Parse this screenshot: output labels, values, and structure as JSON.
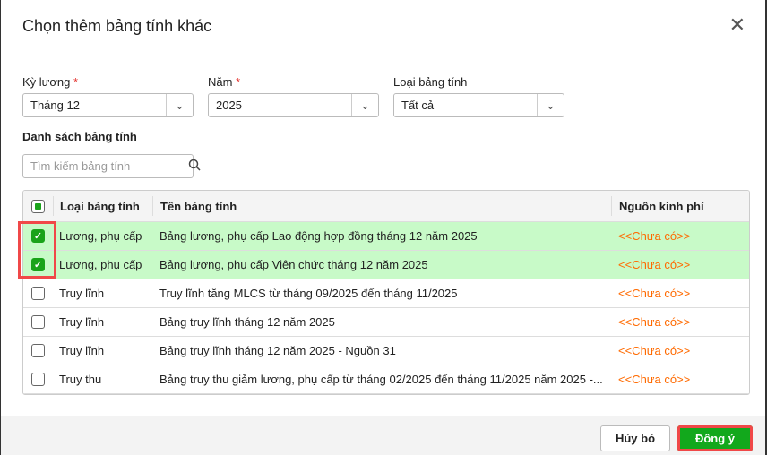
{
  "dialog": {
    "title": "Chọn thêm bảng tính khác"
  },
  "filters": {
    "period": {
      "label": "Kỳ lương",
      "value": "Tháng 12"
    },
    "year": {
      "label": "Năm",
      "value": "2025"
    },
    "type": {
      "label": "Loại bảng tính",
      "value": "Tất cả"
    },
    "required_mark": "*"
  },
  "list": {
    "label": "Danh sách bảng tính",
    "search_placeholder": "Tìm kiếm bảng tính"
  },
  "table": {
    "headers": [
      "Loại bảng tính",
      "Tên bảng tính",
      "Nguồn kinh phí"
    ],
    "rows": [
      {
        "type": "Lương, phụ cấp",
        "name": "Bảng lương, phụ cấp Lao động hợp đồng tháng 12 năm 2025",
        "source": "<<Chưa có>>",
        "checked": true
      },
      {
        "type": "Lương, phụ cấp",
        "name": "Bảng lương, phụ cấp Viên chức tháng 12 năm 2025",
        "source": "<<Chưa có>>",
        "checked": true
      },
      {
        "type": "Truy lĩnh",
        "name": "Truy lĩnh tăng MLCS từ tháng 09/2025 đến tháng 11/2025",
        "source": "<<Chưa có>>",
        "checked": false
      },
      {
        "type": "Truy lĩnh",
        "name": "Bảng truy lĩnh tháng 12 năm 2025",
        "source": "<<Chưa có>>",
        "checked": false
      },
      {
        "type": "Truy lĩnh",
        "name": "Bảng truy lĩnh tháng 12 năm 2025 - Nguồn 31",
        "source": "<<Chưa có>>",
        "checked": false
      },
      {
        "type": "Truy thu",
        "name": "Bảng truy thu giảm lương, phụ cấp từ tháng 02/2025 đến tháng 11/2025 năm 2025 -...",
        "source": "<<Chưa có>>",
        "checked": false
      }
    ]
  },
  "footer": {
    "cancel": "Hủy bỏ",
    "ok": "Đồng ý"
  },
  "colors": {
    "accent": "#12a81c",
    "selected_row": "#c8fac8",
    "highlight": "#f04848",
    "source_text": "#ff6a00"
  }
}
